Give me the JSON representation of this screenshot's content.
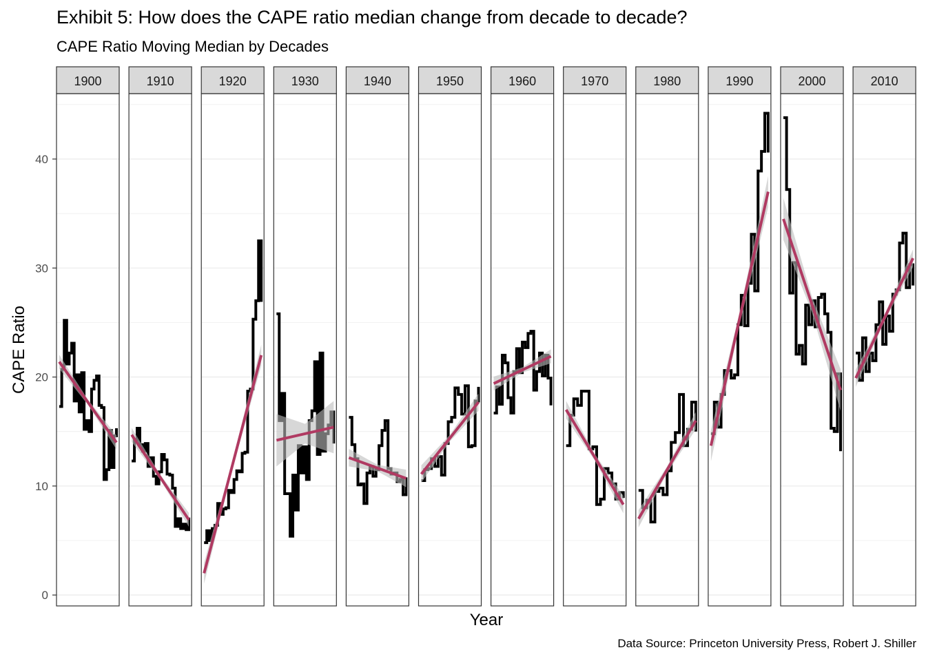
{
  "title": "Exhibit 5: How does the CAPE ratio median change from decade to decade?",
  "subtitle": "CAPE Ratio Moving Median by Decades",
  "caption": "Data Source: Princeton University Press, Robert J. Shiller",
  "colors": {
    "line": "#000000",
    "trend": "#b03a62",
    "band": "#bdbdbd",
    "strip": "#d9d9d9",
    "grid": "#ebebeb"
  },
  "chart_data": {
    "type": "line",
    "facet_by": "decade",
    "xlabel": "Year",
    "ylabel": "CAPE Ratio",
    "ylim": [
      -1,
      46
    ],
    "yticks": [
      0,
      10,
      20,
      30,
      40
    ],
    "grid": true,
    "series": [
      {
        "name": "Moving Median",
        "kind": "step"
      },
      {
        "name": "Linear Trend",
        "kind": "trend_with_confidence_band"
      }
    ],
    "panels": [
      {
        "decade": "1900",
        "trend": [
          21.4,
          14.0
        ],
        "band": 0.4,
        "values": [
          17.3,
          20.7,
          25.2,
          21.2,
          22.2,
          23.1,
          17.8,
          20.2,
          16.8,
          20.4,
          15.2,
          16.0,
          15.0,
          18.9,
          19.7,
          20.1,
          17.4,
          17.2,
          10.6,
          11.5,
          15.1,
          11.7,
          14.6,
          15.3
        ]
      },
      {
        "decade": "1910",
        "trend": [
          14.7,
          6.9
        ],
        "band": 0.4,
        "values": [
          12.3,
          14.2,
          15.3,
          13.8,
          13.2,
          13.9,
          11.8,
          12.6,
          10.9,
          10.2,
          11.3,
          12.9,
          12.4,
          11.1,
          11.0,
          9.8,
          6.3,
          7.0,
          6.1,
          6.5,
          6.0,
          7.1
        ]
      },
      {
        "decade": "1920",
        "trend": [
          2.0,
          22.0
        ],
        "band": 0.6,
        "values": [
          4.8,
          5.9,
          5.0,
          6.1,
          6.4,
          8.4,
          7.4,
          7.9,
          8.0,
          9.6,
          9.4,
          10.6,
          11.4,
          11.3,
          13.0,
          13.1,
          18.7,
          18.9,
          25.3,
          27.0,
          32.5,
          26.9
        ]
      },
      {
        "decade": "1930",
        "trend": [
          14.2,
          15.4
        ],
        "band": 1.5,
        "values": [
          25.8,
          16.0,
          18.5,
          9.3,
          9.3,
          5.4,
          11.0,
          7.8,
          13.7,
          11.2,
          13.6,
          10.6,
          16.0,
          16.9,
          21.4,
          12.9,
          22.2,
          13.2,
          14.8,
          15.6,
          16.8,
          13.9
        ]
      },
      {
        "decade": "1940",
        "trend": [
          12.6,
          10.7
        ],
        "band": 0.5,
        "values": [
          16.3,
          13.8,
          12.5,
          10.1,
          10.2,
          8.4,
          11.2,
          11.8,
          10.9,
          11.5,
          13.7,
          15.1,
          16.0,
          11.6,
          11.1,
          11.2,
          10.4,
          10.6,
          9.2,
          10.8
        ]
      },
      {
        "decade": "1950",
        "trend": [
          11.1,
          17.7
        ],
        "band": 0.5,
        "values": [
          10.5,
          11.5,
          11.6,
          12.5,
          11.8,
          12.7,
          11.0,
          13.9,
          15.9,
          16.3,
          19.0,
          18.4,
          16.6,
          19.2,
          13.6,
          13.7,
          17.8,
          19.1
        ]
      },
      {
        "decade": "1960",
        "trend": [
          19.4,
          21.9
        ],
        "band": 0.4,
        "values": [
          16.7,
          19.1,
          17.5,
          22.0,
          21.3,
          18.1,
          16.7,
          20.5,
          22.6,
          20.4,
          23.2,
          22.7,
          24.0,
          24.2,
          18.8,
          20.5,
          22.2,
          20.1,
          22.0,
          19.9,
          17.4
        ]
      },
      {
        "decade": "1970",
        "trend": [
          17.0,
          8.3
        ],
        "band": 0.5,
        "values": [
          13.7,
          16.5,
          18.0,
          17.4,
          18.7,
          18.7,
          13.4,
          13.6,
          8.3,
          8.8,
          11.6,
          11.2,
          10.2,
          8.8,
          9.4,
          8.9
        ]
      },
      {
        "decade": "1980",
        "trend": [
          7.0,
          16.0
        ],
        "band": 0.5,
        "values": [
          9.6,
          8.0,
          8.7,
          6.7,
          9.5,
          9.8,
          9.2,
          11.4,
          14.0,
          14.9,
          18.4,
          13.7,
          15.2,
          17.7,
          15.0
        ]
      },
      {
        "decade": "1990",
        "trend": [
          13.7,
          37.0
        ],
        "band": 0.9,
        "values": [
          14.8,
          17.7,
          15.4,
          18.4,
          20.6,
          20.6,
          19.9,
          20.2,
          24.8,
          27.5,
          24.7,
          28.6,
          33.1,
          27.9,
          38.9,
          40.7,
          44.2,
          40.6
        ]
      },
      {
        "decade": "2000",
        "trend": [
          34.5,
          18.8
        ],
        "band": 1.2,
        "values": [
          43.8,
          37.2,
          27.7,
          30.5,
          22.1,
          22.9,
          21.2,
          26.6,
          24.8,
          27.0,
          24.6,
          27.3,
          27.6,
          25.8,
          24.1,
          15.3,
          15.0,
          20.3,
          13.2
        ]
      },
      {
        "decade": "2010",
        "trend": [
          19.9,
          30.9
        ],
        "band": 0.5,
        "values": [
          22.2,
          19.7,
          23.6,
          20.5,
          22.2,
          21.5,
          24.8,
          26.9,
          23.0,
          25.6,
          24.2,
          27.6,
          28.0,
          32.3,
          33.2,
          28.2,
          30.3,
          28.4
        ]
      }
    ]
  }
}
